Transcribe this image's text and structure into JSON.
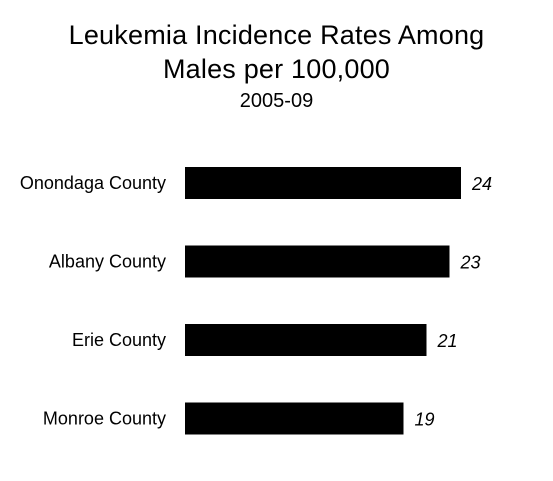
{
  "chart_data": {
    "type": "bar",
    "orientation": "horizontal",
    "title": "Leukemia Incidence Rates Among Males per 100,000",
    "title_lines": [
      "Leukemia Incidence  Rates Among",
      "Males per 100,000"
    ],
    "subtitle": "2005-09",
    "categories": [
      "Onondaga County",
      "Albany County",
      "Erie County",
      "Monroe County"
    ],
    "values": [
      24,
      23,
      21,
      19
    ],
    "data_labels": [
      "24",
      "23",
      "21",
      "19"
    ],
    "xlabel": "",
    "ylabel": "",
    "xlim": [
      0,
      24
    ],
    "grid": false,
    "legend": "none",
    "bar_color": "#000000"
  }
}
